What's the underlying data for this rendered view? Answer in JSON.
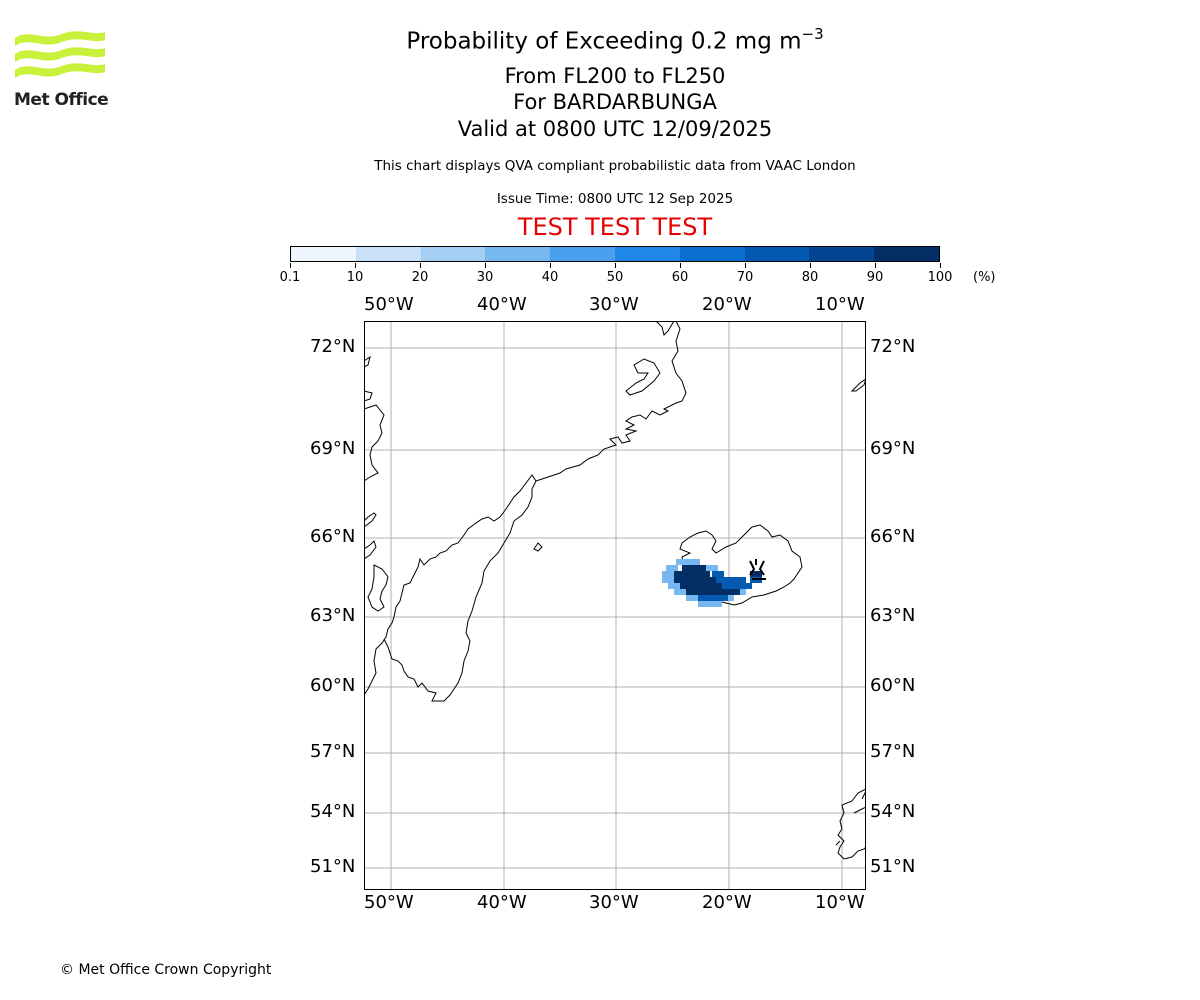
{
  "logo": {
    "text": "Met Office",
    "color": "#c8f23a"
  },
  "title": {
    "main": "Probability of Exceeding 0.2 mg m",
    "main_sup": "−3",
    "line2": "From FL200 to FL250",
    "line3": "For BARDARBUNGA",
    "line4": "Valid at 0800 UTC 12/09/2025",
    "note": "This chart displays QVA compliant probabilistic data from VAAC London",
    "issue": "Issue Time: 0800 UTC 12 Sep 2025",
    "test": "TEST TEST TEST"
  },
  "colorbar": {
    "ticks": [
      "0.1",
      "10",
      "20",
      "30",
      "40",
      "50",
      "60",
      "70",
      "80",
      "90",
      "100"
    ],
    "unit": "(%)",
    "colors": [
      "#eef5ff",
      "#c9e1f8",
      "#a5cef4",
      "#77b8f0",
      "#4aa0ef",
      "#2088e8",
      "#0b6fd0",
      "#0559b0",
      "#044592",
      "#032f66"
    ]
  },
  "map": {
    "lon_labels": [
      "50°W",
      "40°W",
      "30°W",
      "20°W",
      "10°W"
    ],
    "lat_labels": [
      "72°N",
      "69°N",
      "66°N",
      "63°N",
      "60°N",
      "57°N",
      "54°N",
      "51°N"
    ],
    "volcano": "BARDARBUNGA",
    "ash_color_dark": "#032f66",
    "ash_color_mid": "#0559b0",
    "ash_color_light": "#77b8f0"
  },
  "footer": {
    "copyright": "© Met Office Crown Copyright"
  }
}
